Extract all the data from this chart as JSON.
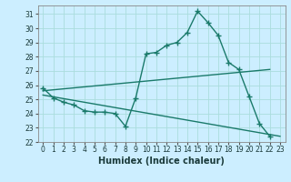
{
  "title": "",
  "xlabel": "Humidex (Indice chaleur)",
  "background_color": "#cceeff",
  "line_color": "#1a7a6a",
  "grid_color": "#aadddd",
  "xlim": [
    -0.5,
    23.5
  ],
  "ylim": [
    22,
    31.6
  ],
  "yticks": [
    22,
    23,
    24,
    25,
    26,
    27,
    28,
    29,
    30,
    31
  ],
  "xticks": [
    0,
    1,
    2,
    3,
    4,
    5,
    6,
    7,
    8,
    9,
    10,
    11,
    12,
    13,
    14,
    15,
    16,
    17,
    18,
    19,
    20,
    21,
    22,
    23
  ],
  "series1_x": [
    0,
    1,
    2,
    3,
    4,
    5,
    6,
    7,
    8,
    9,
    10,
    11,
    12,
    13,
    14,
    15,
    16,
    17,
    18,
    19,
    20,
    21,
    22
  ],
  "series1_y": [
    25.8,
    25.1,
    24.8,
    24.6,
    24.2,
    24.1,
    24.1,
    24.0,
    23.1,
    25.1,
    28.2,
    28.3,
    28.8,
    29.0,
    29.7,
    31.2,
    30.4,
    29.5,
    27.6,
    27.1,
    25.2,
    23.3,
    22.4
  ],
  "trend1_x": [
    0,
    22
  ],
  "trend1_y": [
    25.6,
    27.1
  ],
  "trend2_x": [
    0,
    23
  ],
  "trend2_y": [
    25.3,
    22.4
  ],
  "marker": "+",
  "markersize": 4,
  "linewidth": 1.0,
  "tick_fontsize": 5.5,
  "xlabel_fontsize": 7
}
